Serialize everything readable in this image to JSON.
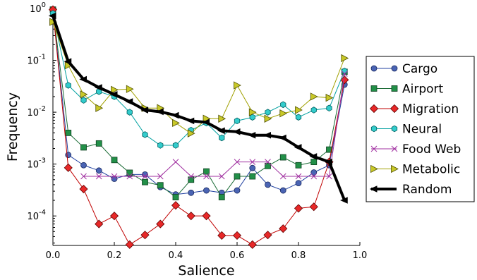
{
  "chart_data": {
    "type": "line",
    "xlabel": "Salience",
    "ylabel": "Frequency",
    "xlim": [
      0.0,
      1.0
    ],
    "ylim": [
      2.7e-05,
      1.0
    ],
    "y_scale": "log",
    "grid": false,
    "legend_position": "right",
    "x_ticks": [
      {
        "value": 0.0,
        "label": "0.0"
      },
      {
        "value": 0.2,
        "label": "0.2"
      },
      {
        "value": 0.4,
        "label": "0.4"
      },
      {
        "value": 0.6,
        "label": "0.6"
      },
      {
        "value": 0.8,
        "label": "0.8"
      },
      {
        "value": 1.0,
        "label": "1.0"
      }
    ],
    "y_ticks": [
      {
        "value": 0.0001,
        "base": "10",
        "exp": "-4"
      },
      {
        "value": 0.001,
        "base": "10",
        "exp": "-3"
      },
      {
        "value": 0.01,
        "base": "10",
        "exp": "-2"
      },
      {
        "value": 0.1,
        "base": "10",
        "exp": "-1"
      },
      {
        "value": 1.0,
        "base": "10",
        "exp": "0"
      }
    ],
    "series": [
      {
        "name": "Cargo",
        "marker": "circle",
        "color": "#2040a0",
        "fill": "#4a64b4",
        "line_width": 1,
        "x": [
          0.0,
          0.05,
          0.1,
          0.15,
          0.2,
          0.25,
          0.3,
          0.35,
          0.4,
          0.45,
          0.5,
          0.55,
          0.6,
          0.65,
          0.7,
          0.75,
          0.8,
          0.85,
          0.9,
          0.95
        ],
        "y": [
          0.95,
          0.0015,
          0.00095,
          0.00075,
          0.00052,
          0.00063,
          0.00063,
          0.00036,
          0.00026,
          0.00028,
          0.00031,
          0.00028,
          0.00031,
          0.00084,
          0.0004,
          0.00031,
          0.00043,
          0.00069,
          0.00095,
          0.034
        ]
      },
      {
        "name": "Airport",
        "marker": "square",
        "color": "#1a6b35",
        "fill": "#229048",
        "line_width": 1,
        "x": [
          0.0,
          0.05,
          0.1,
          0.15,
          0.2,
          0.25,
          0.3,
          0.35,
          0.4,
          0.45,
          0.5,
          0.55,
          0.6,
          0.65,
          0.7,
          0.75,
          0.8,
          0.85,
          0.9,
          0.95
        ],
        "y": [
          0.95,
          0.004,
          0.0021,
          0.0025,
          0.0012,
          0.00068,
          0.00045,
          0.00039,
          0.00023,
          0.0005,
          0.00072,
          0.00023,
          0.00058,
          0.00058,
          0.00092,
          0.00135,
          0.00095,
          0.0011,
          0.0019,
          0.06
        ]
      },
      {
        "name": "Migration",
        "marker": "diamond",
        "color": "#c00000",
        "fill": "#e82828",
        "line_width": 1,
        "x": [
          0.0,
          0.05,
          0.1,
          0.15,
          0.2,
          0.25,
          0.3,
          0.35,
          0.4,
          0.45,
          0.5,
          0.55,
          0.6,
          0.65,
          0.7,
          0.75,
          0.8,
          0.85,
          0.9,
          0.95
        ],
        "y": [
          0.95,
          0.00085,
          0.00033,
          7e-05,
          0.0001,
          2.8e-05,
          4.3e-05,
          7e-05,
          0.00016,
          0.0001,
          0.0001,
          4.2e-05,
          4.2e-05,
          2.8e-05,
          4.3e-05,
          5.7e-05,
          0.00014,
          0.00015,
          0.0011,
          0.042
        ]
      },
      {
        "name": "Neural",
        "marker": "hexagon",
        "color": "#00a0a0",
        "fill": "#33cccc",
        "line_width": 1,
        "x": [
          0.0,
          0.05,
          0.1,
          0.15,
          0.2,
          0.25,
          0.3,
          0.35,
          0.4,
          0.45,
          0.5,
          0.55,
          0.6,
          0.65,
          0.7,
          0.75,
          0.8,
          0.85,
          0.9,
          0.95
        ],
        "y": [
          0.8,
          0.033,
          0.017,
          0.025,
          0.02,
          0.01,
          0.0037,
          0.0023,
          0.0023,
          0.0045,
          0.0062,
          0.0032,
          0.0068,
          0.008,
          0.01,
          0.014,
          0.008,
          0.011,
          0.012,
          0.062
        ]
      },
      {
        "name": "Food Web",
        "marker": "x",
        "color": "#a030a0",
        "fill": "none",
        "line_width": 1,
        "x": [
          0.1,
          0.15,
          0.2,
          0.25,
          0.3,
          0.35,
          0.4,
          0.45,
          0.5,
          0.55,
          0.6,
          0.65,
          0.7,
          0.75,
          0.8,
          0.85,
          0.9,
          0.95
        ],
        "y": [
          0.00058,
          0.00058,
          0.00058,
          0.00058,
          0.00058,
          0.00058,
          0.0011,
          0.00058,
          0.00058,
          0.00058,
          0.0011,
          0.0011,
          0.0011,
          0.00058,
          0.00058,
          0.00058,
          0.00058,
          0.055
        ]
      },
      {
        "name": "Metabolic",
        "marker": "triangle-right",
        "color": "#a0a000",
        "fill": "#c8c828",
        "line_width": 1,
        "x": [
          0.0,
          0.05,
          0.1,
          0.15,
          0.2,
          0.25,
          0.3,
          0.35,
          0.4,
          0.45,
          0.5,
          0.55,
          0.6,
          0.65,
          0.7,
          0.75,
          0.8,
          0.85,
          0.9,
          0.95
        ],
        "y": [
          0.55,
          0.08,
          0.022,
          0.012,
          0.027,
          0.028,
          0.012,
          0.012,
          0.0062,
          0.0039,
          0.0075,
          0.0075,
          0.033,
          0.01,
          0.0075,
          0.0095,
          0.011,
          0.02,
          0.019,
          0.11
        ]
      },
      {
        "name": "Random",
        "marker": "arrow-left",
        "color": "#000000",
        "fill": "#000000",
        "line_width": 4,
        "x": [
          0.0,
          0.05,
          0.1,
          0.15,
          0.2,
          0.25,
          0.3,
          0.35,
          0.4,
          0.45,
          0.5,
          0.55,
          0.6,
          0.65,
          0.7,
          0.75,
          0.8,
          0.85,
          0.9,
          0.95
        ],
        "y": [
          0.72,
          0.095,
          0.043,
          0.03,
          0.022,
          0.016,
          0.011,
          0.0102,
          0.0087,
          0.0068,
          0.0064,
          0.0044,
          0.0042,
          0.0036,
          0.0036,
          0.0032,
          0.0021,
          0.0014,
          0.0011,
          0.0002
        ]
      }
    ]
  }
}
